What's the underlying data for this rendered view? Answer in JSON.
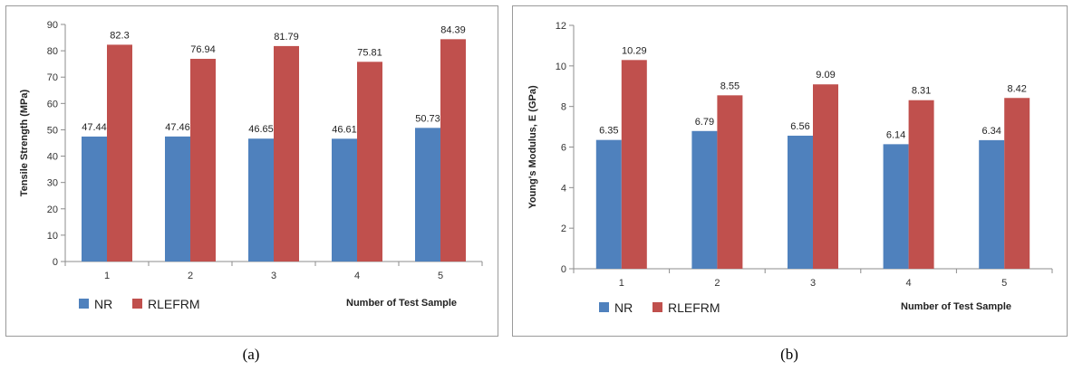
{
  "chart_data": [
    {
      "type": "bar",
      "caption": "(a)",
      "categories": [
        "1",
        "2",
        "3",
        "4",
        "5"
      ],
      "series": [
        {
          "name": "NR",
          "color": "#4f81bd",
          "values": [
            47.44,
            47.46,
            46.65,
            46.61,
            50.73
          ],
          "labels": [
            "47.44",
            "47.46",
            "46.65",
            "46.61",
            "50.73"
          ]
        },
        {
          "name": "RLEFRM",
          "color": "#c0504d",
          "values": [
            82.3,
            76.94,
            81.79,
            75.81,
            84.39
          ],
          "labels": [
            "82.3",
            "76.94",
            "81.79",
            "75.81",
            "84.39"
          ]
        }
      ],
      "xlabel": "Number of Test Sample",
      "ylabel": "Tensile Strength (MPa)",
      "ylim": [
        0,
        90
      ],
      "yticks": [
        0,
        10,
        20,
        30,
        40,
        50,
        60,
        70,
        80,
        90
      ],
      "grid": false,
      "legend": "bottom-left"
    },
    {
      "type": "bar",
      "caption": "(b)",
      "categories": [
        "1",
        "2",
        "3",
        "4",
        "5"
      ],
      "series": [
        {
          "name": "NR",
          "color": "#4f81bd",
          "values": [
            6.35,
            6.79,
            6.56,
            6.14,
            6.34
          ],
          "labels": [
            "6.35",
            "6.79",
            "6.56",
            "6.14",
            "6.34"
          ]
        },
        {
          "name": "RLEFRM",
          "color": "#c0504d",
          "values": [
            10.29,
            8.55,
            9.09,
            8.31,
            8.42
          ],
          "labels": [
            "10.29",
            "8.55",
            "9.09",
            "8.31",
            "8.42"
          ]
        }
      ],
      "xlabel": "Number of Test Sample",
      "ylabel": "Young's Modulus, E (GPa)",
      "ylim": [
        0,
        12
      ],
      "yticks": [
        0,
        2,
        4,
        6,
        8,
        10,
        12
      ],
      "grid": false,
      "legend": "bottom-left"
    }
  ]
}
